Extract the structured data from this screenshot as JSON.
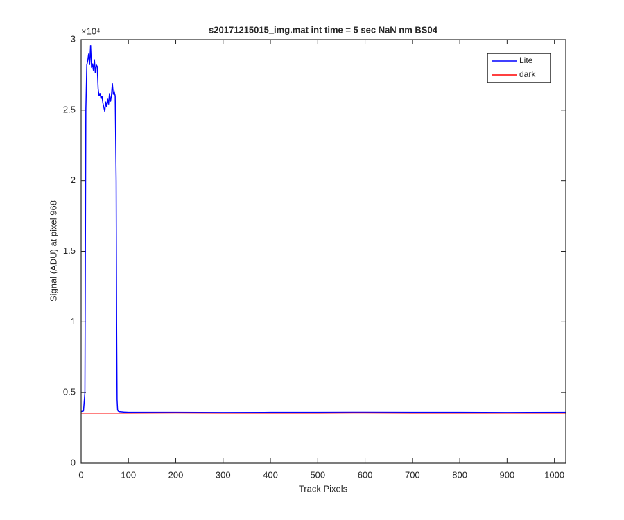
{
  "chart_data": {
    "type": "line",
    "title": "s20171215015_img.mat int time = 5 sec  NaN nm BS04",
    "xlabel": "Track Pixels",
    "ylabel": "Signal (ADU) at pixel 968",
    "y_multiplier": "×10⁴",
    "xlim": [
      0,
      1024
    ],
    "ylim": [
      0,
      30000
    ],
    "xticks": [
      0,
      100,
      200,
      300,
      400,
      500,
      600,
      700,
      800,
      900,
      1000
    ],
    "yticks": [
      0,
      {
        "value": 5000,
        "label": "0.5"
      },
      {
        "value": 10000,
        "label": "1"
      },
      {
        "value": 15000,
        "label": "1.5"
      },
      {
        "value": 20000,
        "label": "2"
      },
      {
        "value": 25000,
        "label": "2.5"
      },
      {
        "value": 30000,
        "label": "3"
      }
    ],
    "legend": "top-right",
    "series": [
      {
        "name": "Lite",
        "color": "#0000ff",
        "x": [
          0,
          5,
          8,
          10,
          12,
          14,
          16,
          18,
          20,
          22,
          24,
          26,
          28,
          30,
          32,
          34,
          36,
          38,
          40,
          42,
          44,
          46,
          48,
          50,
          52,
          54,
          56,
          58,
          60,
          62,
          64,
          66,
          68,
          70,
          72,
          74,
          75,
          76,
          77,
          78,
          80,
          90,
          100,
          200,
          300,
          400,
          500,
          600,
          700,
          800,
          900,
          1024
        ],
        "values": [
          3650,
          3700,
          5000,
          25000,
          28200,
          28500,
          29000,
          28200,
          29600,
          28000,
          28300,
          27800,
          28600,
          27600,
          28200,
          28100,
          26500,
          26000,
          26200,
          25800,
          26000,
          25500,
          25200,
          24900,
          25600,
          25200,
          25800,
          25400,
          26200,
          25600,
          26000,
          26900,
          26100,
          26300,
          26000,
          20000,
          10000,
          4500,
          3800,
          3700,
          3650,
          3620,
          3600,
          3600,
          3590,
          3600,
          3600,
          3610,
          3600,
          3600,
          3590,
          3600
        ]
      },
      {
        "name": "dark",
        "color": "#ff0000",
        "x": [
          0,
          100,
          200,
          300,
          400,
          500,
          600,
          700,
          800,
          900,
          1024
        ],
        "values": [
          3550,
          3550,
          3560,
          3550,
          3550,
          3550,
          3560,
          3550,
          3550,
          3550,
          3550
        ]
      }
    ]
  }
}
